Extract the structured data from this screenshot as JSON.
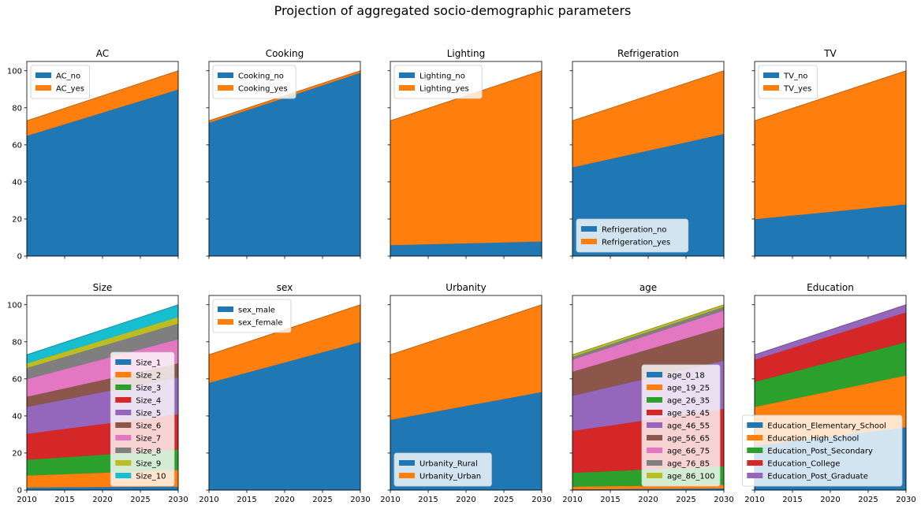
{
  "figure": {
    "title": "Projection of aggregated socio-demographic parameters"
  },
  "chart_data": [
    {
      "type": "area",
      "title": "AC",
      "x": [
        2010,
        2030
      ],
      "xticks": [
        2010,
        2015,
        2020,
        2025,
        2030
      ],
      "ylim": [
        0,
        105
      ],
      "yticks": [
        0,
        20,
        40,
        60,
        80,
        100
      ],
      "legend_position": "upper-left",
      "series": [
        {
          "name": "AC_no",
          "color": "#1f77b4",
          "values": [
            65,
            90
          ]
        },
        {
          "name": "AC_yes",
          "color": "#ff7f0e",
          "values": [
            8,
            10
          ]
        }
      ]
    },
    {
      "type": "area",
      "title": "Cooking",
      "x": [
        2010,
        2030
      ],
      "xticks": [
        2010,
        2015,
        2020,
        2025,
        2030
      ],
      "ylim": [
        0,
        105
      ],
      "yticks": [
        0,
        20,
        40,
        60,
        80,
        100
      ],
      "legend_position": "upper-left",
      "series": [
        {
          "name": "Cooking_no",
          "color": "#1f77b4",
          "values": [
            72,
            99
          ]
        },
        {
          "name": "Cooking_yes",
          "color": "#ff7f0e",
          "values": [
            1,
            1
          ]
        }
      ]
    },
    {
      "type": "area",
      "title": "Lighting",
      "x": [
        2010,
        2030
      ],
      "xticks": [
        2010,
        2015,
        2020,
        2025,
        2030
      ],
      "ylim": [
        0,
        105
      ],
      "yticks": [
        0,
        20,
        40,
        60,
        80,
        100
      ],
      "legend_position": "upper-left",
      "series": [
        {
          "name": "Lighting_no",
          "color": "#1f77b4",
          "values": [
            6,
            8
          ]
        },
        {
          "name": "Lighting_yes",
          "color": "#ff7f0e",
          "values": [
            67,
            92
          ]
        }
      ]
    },
    {
      "type": "area",
      "title": "Refrigeration",
      "x": [
        2010,
        2030
      ],
      "xticks": [
        2010,
        2015,
        2020,
        2025,
        2030
      ],
      "ylim": [
        0,
        105
      ],
      "yticks": [
        0,
        20,
        40,
        60,
        80,
        100
      ],
      "legend_position": "lower-left",
      "series": [
        {
          "name": "Refrigeration_no",
          "color": "#1f77b4",
          "values": [
            48,
            66
          ]
        },
        {
          "name": "Refrigeration_yes",
          "color": "#ff7f0e",
          "values": [
            25,
            34
          ]
        }
      ]
    },
    {
      "type": "area",
      "title": "TV",
      "x": [
        2010,
        2030
      ],
      "xticks": [
        2010,
        2015,
        2020,
        2025,
        2030
      ],
      "ylim": [
        0,
        105
      ],
      "yticks": [
        0,
        20,
        40,
        60,
        80,
        100
      ],
      "legend_position": "upper-left",
      "series": [
        {
          "name": "TV_no",
          "color": "#1f77b4",
          "values": [
            20,
            28
          ]
        },
        {
          "name": "TV_yes",
          "color": "#ff7f0e",
          "values": [
            53,
            72
          ]
        }
      ]
    },
    {
      "type": "area",
      "title": "Size",
      "x": [
        2010,
        2030
      ],
      "xticks": [
        2010,
        2015,
        2020,
        2025,
        2030
      ],
      "ylim": [
        0,
        105
      ],
      "yticks": [
        0,
        20,
        40,
        60,
        80,
        100
      ],
      "legend_position": "lower-right",
      "series": [
        {
          "name": "Size_1",
          "color": "#1f77b4",
          "values": [
            1.5,
            2
          ]
        },
        {
          "name": "Size_2",
          "color": "#ff7f0e",
          "values": [
            6.5,
            9
          ]
        },
        {
          "name": "Size_3",
          "color": "#2ca02c",
          "values": [
            8.5,
            11
          ]
        },
        {
          "name": "Size_4",
          "color": "#d62728",
          "values": [
            14,
            19
          ]
        },
        {
          "name": "Size_5",
          "color": "#9467bd",
          "values": [
            14.5,
            20
          ]
        },
        {
          "name": "Size_6",
          "color": "#8c564b",
          "values": [
            5.5,
            7.5
          ]
        },
        {
          "name": "Size_7",
          "color": "#e377c2",
          "values": [
            9.5,
            13
          ]
        },
        {
          "name": "Size_8",
          "color": "#7f7f7f",
          "values": [
            6,
            8.5
          ]
        },
        {
          "name": "Size_9",
          "color": "#bcbd22",
          "values": [
            2.5,
            3.5
          ]
        },
        {
          "name": "Size_10",
          "color": "#17becf",
          "values": [
            4.5,
            6.5
          ]
        }
      ]
    },
    {
      "type": "area",
      "title": "sex",
      "x": [
        2010,
        2030
      ],
      "xticks": [
        2010,
        2015,
        2020,
        2025,
        2030
      ],
      "ylim": [
        0,
        105
      ],
      "yticks": [
        0,
        20,
        40,
        60,
        80,
        100
      ],
      "legend_position": "upper-left",
      "series": [
        {
          "name": "sex_male",
          "color": "#1f77b4",
          "values": [
            58,
            80
          ]
        },
        {
          "name": "sex_female",
          "color": "#ff7f0e",
          "values": [
            15,
            20
          ]
        }
      ]
    },
    {
      "type": "area",
      "title": "Urbanity",
      "x": [
        2010,
        2030
      ],
      "xticks": [
        2010,
        2015,
        2020,
        2025,
        2030
      ],
      "ylim": [
        0,
        105
      ],
      "yticks": [
        0,
        20,
        40,
        60,
        80,
        100
      ],
      "legend_position": "lower-left",
      "series": [
        {
          "name": "Urbanity_Rural",
          "color": "#1f77b4",
          "values": [
            38,
            53
          ]
        },
        {
          "name": "Urbanity_Urban",
          "color": "#ff7f0e",
          "values": [
            35,
            47
          ]
        }
      ]
    },
    {
      "type": "area",
      "title": "age",
      "x": [
        2010,
        2030
      ],
      "xticks": [
        2010,
        2015,
        2020,
        2025,
        2030
      ],
      "ylim": [
        0,
        105
      ],
      "yticks": [
        0,
        20,
        40,
        60,
        80,
        100
      ],
      "legend_position": "lower-right",
      "series": [
        {
          "name": "age_0_18",
          "color": "#1f77b4",
          "values": [
            0.5,
            1
          ]
        },
        {
          "name": "age_19_25",
          "color": "#ff7f0e",
          "values": [
            1.5,
            2
          ]
        },
        {
          "name": "age_26_35",
          "color": "#2ca02c",
          "values": [
            7.5,
            10
          ]
        },
        {
          "name": "age_36_45",
          "color": "#d62728",
          "values": [
            22.5,
            31
          ]
        },
        {
          "name": "age_46_55",
          "color": "#9467bd",
          "values": [
            19,
            26
          ]
        },
        {
          "name": "age_56_65",
          "color": "#8c564b",
          "values": [
            13,
            18
          ]
        },
        {
          "name": "age_66_75",
          "color": "#e377c2",
          "values": [
            6.5,
            9
          ]
        },
        {
          "name": "age_76_85",
          "color": "#7f7f7f",
          "values": [
            1.5,
            2
          ]
        },
        {
          "name": "age_86_100",
          "color": "#bcbd22",
          "values": [
            1,
            1
          ]
        }
      ]
    },
    {
      "type": "area",
      "title": "Education",
      "x": [
        2010,
        2030
      ],
      "xticks": [
        2010,
        2015,
        2020,
        2025,
        2030
      ],
      "ylim": [
        0,
        105
      ],
      "yticks": [
        0,
        20,
        40,
        60,
        80,
        100
      ],
      "legend_position": "lower-right",
      "series": [
        {
          "name": "Education_Elementary_School",
          "color": "#1f77b4",
          "values": [
            24,
            34
          ]
        },
        {
          "name": "Education_High_School",
          "color": "#ff7f0e",
          "values": [
            21,
            28
          ]
        },
        {
          "name": "Education_Post_Secondary",
          "color": "#2ca02c",
          "values": [
            13.5,
            18
          ]
        },
        {
          "name": "Education_College",
          "color": "#d62728",
          "values": [
            12,
            16
          ]
        },
        {
          "name": "Education_Post_Graduate",
          "color": "#9467bd",
          "values": [
            2.5,
            4
          ]
        }
      ]
    }
  ]
}
